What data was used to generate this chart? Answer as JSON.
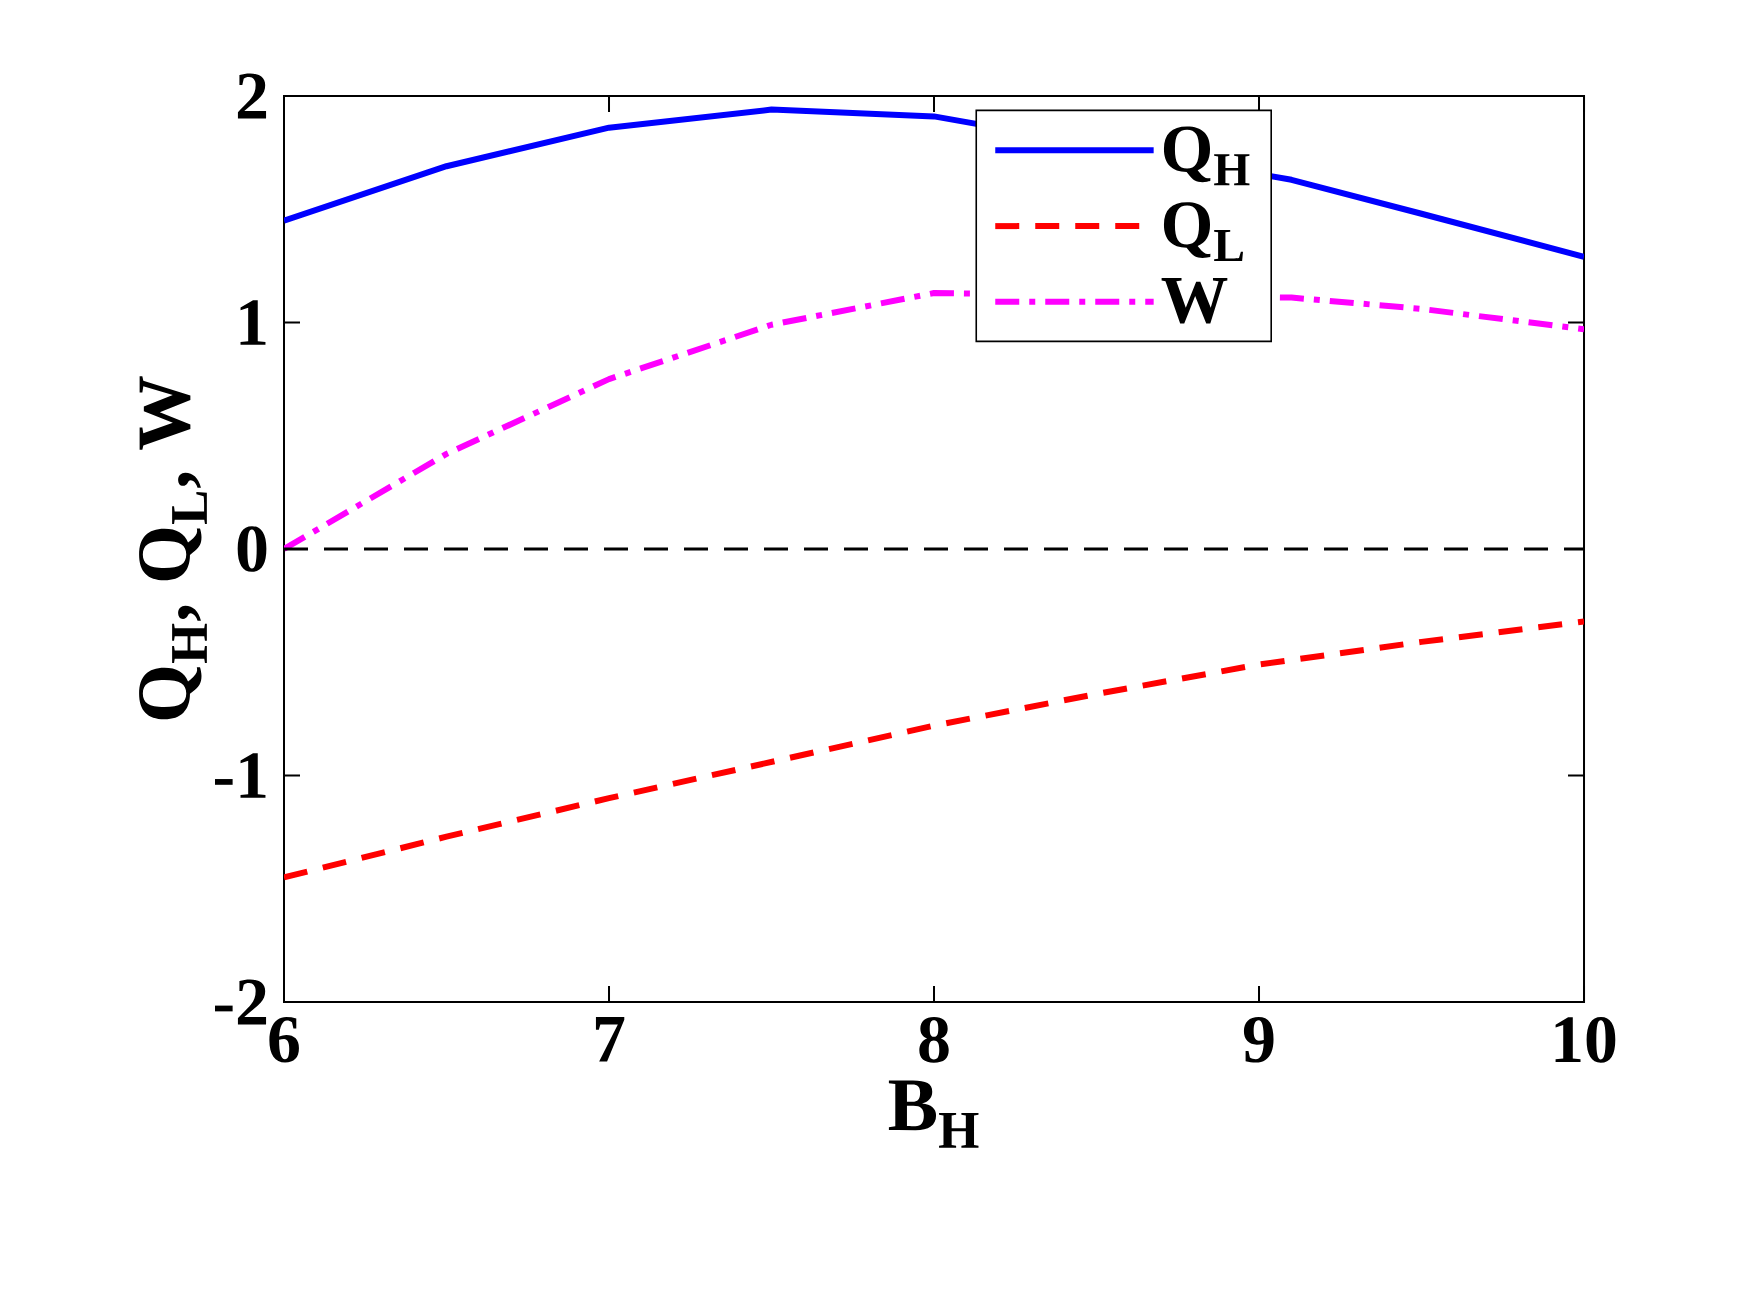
{
  "chart_data": {
    "type": "line",
    "xlabel": "B$_{H}$",
    "ylabel": "Q$_{H}$, Q$_{L}$, W",
    "xlim": [
      6,
      10
    ],
    "ylim": [
      -2,
      2
    ],
    "xticks": [
      6,
      7,
      8,
      9,
      10
    ],
    "yticks": [
      -2,
      -1,
      0,
      1,
      2
    ],
    "series": [
      {
        "name": "Q$_{H}$",
        "color": "#0000ff",
        "line_style": "solid",
        "x": [
          6,
          6.5,
          7,
          7.5,
          8,
          9.1,
          9.5,
          10
        ],
        "values": [
          1.45,
          1.69,
          1.86,
          1.94,
          1.91,
          1.63,
          1.48,
          1.29
        ]
      },
      {
        "name": "Q$_{L}$",
        "color": "#ff0000",
        "line_style": "dashed",
        "x": [
          6,
          6.5,
          7,
          7.5,
          8,
          8.5,
          9,
          9.5,
          10
        ],
        "values": [
          -1.45,
          -1.27,
          -1.1,
          -0.94,
          -0.78,
          -0.64,
          -0.51,
          -0.41,
          -0.32
        ]
      },
      {
        "name": "W",
        "color": "#ff00ff",
        "line_style": "dashdot",
        "x": [
          6,
          6.5,
          7,
          7.5,
          8,
          9.1,
          9.5,
          10
        ],
        "values": [
          0,
          0.42,
          0.75,
          0.99,
          1.13,
          1.11,
          1.06,
          0.97
        ]
      }
    ],
    "ref_lines": [
      {
        "axis": "y",
        "value": 0,
        "color": "#000000",
        "line_style": "dashed"
      }
    ],
    "legend": "top right",
    "grid": false,
    "marker": "none"
  }
}
